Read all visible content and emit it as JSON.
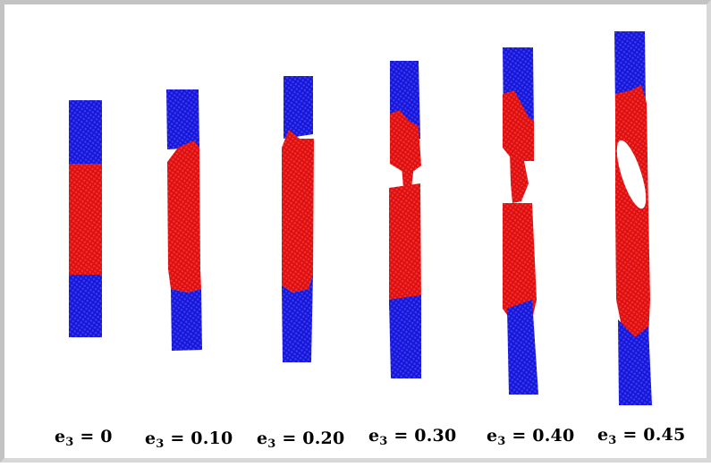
{
  "figure": {
    "colors": {
      "outer_region": "#1212d6",
      "inner_region": "#e01010",
      "background": "#ffffff",
      "frame": "#c3c3c3"
    },
    "panels": [
      {
        "var": "e",
        "sub": "3",
        "value": "= 0"
      },
      {
        "var": "e",
        "sub": "3",
        "value": "= 0.10"
      },
      {
        "var": "e",
        "sub": "3",
        "value": "= 0.20"
      },
      {
        "var": "e",
        "sub": "3",
        "value": "= 0.30"
      },
      {
        "var": "e",
        "sub": "3",
        "value": "= 0.40"
      },
      {
        "var": "e",
        "sub": "3",
        "value": "= 0.45"
      }
    ]
  }
}
